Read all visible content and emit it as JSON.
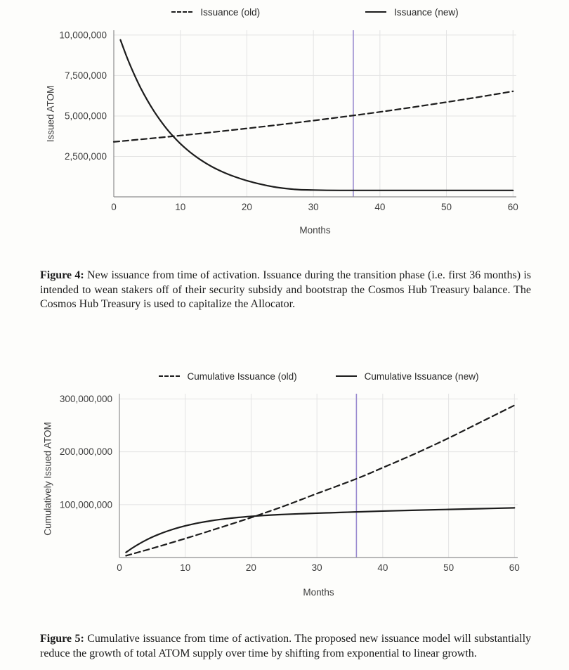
{
  "figure4": {
    "ylabel": "Issued ATOM",
    "xlabel": "Months",
    "caption_label": "Figure 4:",
    "caption_text": "New issuance from time of activation. Issuance during the transition phase (i.e. first 36 months) is intended to wean stakers off of their security subsidy and bootstrap the Cosmos Hub Treasury balance. The Cosmos Hub Treasury is used to capitalize the Allocator."
  },
  "figure5": {
    "ylabel": "Cumulatively Issued ATOM",
    "xlabel": "Months",
    "caption_label": "Figure 5:",
    "caption_text": "Cumulative issuance from time of activation. The proposed new issuance model will substantially reduce the growth of total ATOM supply over time by shifting from exponential to linear growth."
  },
  "chart_data": [
    {
      "type": "line",
      "title": "",
      "xlabel": "Months",
      "ylabel": "Issued ATOM",
      "xlim": [
        0,
        60.5
      ],
      "ylim": [
        0,
        10300000
      ],
      "grid": true,
      "legend_position": "top",
      "xticks": [
        0,
        10,
        20,
        30,
        40,
        50,
        60
      ],
      "yticks": [
        {
          "value": 2500000,
          "label": "2,500,000"
        },
        {
          "value": 5000000,
          "label": "5,000,000"
        },
        {
          "value": 7500000,
          "label": "7,500,000"
        },
        {
          "value": 10000000,
          "label": "10,000,000"
        }
      ],
      "marker_line": {
        "x": 36,
        "color": "#9b8cd0"
      },
      "colors": {
        "grid": "#e3e3e3",
        "spine": "#8f8f8f"
      },
      "series": [
        {
          "name": "Issuance (old)",
          "style": "dashed",
          "color": "#1c1c1c",
          "points": [
            [
              0,
              3400000
            ],
            [
              5,
              3590000
            ],
            [
              10,
              3790000
            ],
            [
              15,
              4005000
            ],
            [
              20,
              4230000
            ],
            [
              25,
              4465000
            ],
            [
              30,
              4715000
            ],
            [
              36,
              5030000
            ],
            [
              40,
              5250000
            ],
            [
              45,
              5545000
            ],
            [
              50,
              5855000
            ],
            [
              55,
              6180000
            ],
            [
              60,
              6525000
            ]
          ]
        },
        {
          "name": "Issuance (new)",
          "style": "solid",
          "color": "#1c1c1c",
          "points": [
            [
              1,
              9700000
            ],
            [
              2,
              8600000
            ],
            [
              3,
              7630000
            ],
            [
              4,
              6760000
            ],
            [
              5,
              6000000
            ],
            [
              6,
              5320000
            ],
            [
              7,
              4720000
            ],
            [
              8,
              4180000
            ],
            [
              9,
              3710000
            ],
            [
              10,
              3290000
            ],
            [
              11,
              2920000
            ],
            [
              12,
              2590000
            ],
            [
              13,
              2300000
            ],
            [
              14,
              2040000
            ],
            [
              15,
              1810000
            ],
            [
              16,
              1610000
            ],
            [
              17,
              1430000
            ],
            [
              18,
              1270000
            ],
            [
              19,
              1130000
            ],
            [
              20,
              1000000
            ],
            [
              21,
              890000
            ],
            [
              22,
              790000
            ],
            [
              23,
              700000
            ],
            [
              24,
              620000
            ],
            [
              25,
              560000
            ],
            [
              26,
              510000
            ],
            [
              27,
              470000
            ],
            [
              28,
              440000
            ],
            [
              30,
              420000
            ],
            [
              32,
              405000
            ],
            [
              34,
              400000
            ],
            [
              36,
              400000
            ],
            [
              40,
              400000
            ],
            [
              45,
              400000
            ],
            [
              50,
              400000
            ],
            [
              55,
              400000
            ],
            [
              60,
              400000
            ]
          ]
        }
      ]
    },
    {
      "type": "line",
      "title": "",
      "xlabel": "Months",
      "ylabel": "Cumulatively Issued ATOM",
      "xlim": [
        0,
        60.5
      ],
      "ylim": [
        0,
        310000000
      ],
      "grid": true,
      "legend_position": "top",
      "xticks": [
        0,
        10,
        20,
        30,
        40,
        50,
        60
      ],
      "yticks": [
        {
          "value": 100000000,
          "label": "100,000,000"
        },
        {
          "value": 200000000,
          "label": "200,000,000"
        },
        {
          "value": 300000000,
          "label": "300,000,000"
        }
      ],
      "marker_line": {
        "x": 36,
        "color": "#9b8cd0"
      },
      "colors": {
        "grid": "#e3e3e3",
        "spine": "#8f8f8f"
      },
      "series": [
        {
          "name": "Cumulative Issuance (old)",
          "style": "dashed",
          "color": "#1c1c1c",
          "points": [
            [
              1,
              3400000
            ],
            [
              5,
              17400000
            ],
            [
              10,
              35900000
            ],
            [
              15,
              55400000
            ],
            [
              20,
              75600000
            ],
            [
              25,
              97300000
            ],
            [
              30,
              121000000
            ],
            [
              36,
              149000000
            ],
            [
              40,
              170000000
            ],
            [
              45,
              197000000
            ],
            [
              50,
              226000000
            ],
            [
              55,
              257000000
            ],
            [
              60,
              288000000
            ]
          ]
        },
        {
          "name": "Cumulative Issuance (new)",
          "style": "solid",
          "color": "#1c1c1c",
          "points": [
            [
              1,
              9700000
            ],
            [
              2,
              18300000
            ],
            [
              3,
              25900000
            ],
            [
              4,
              32700000
            ],
            [
              5,
              38700000
            ],
            [
              6,
              44000000
            ],
            [
              7,
              48700000
            ],
            [
              8,
              52900000
            ],
            [
              9,
              56600000
            ],
            [
              10,
              59900000
            ],
            [
              12,
              65400000
            ],
            [
              14,
              69700000
            ],
            [
              16,
              73100000
            ],
            [
              18,
              75800000
            ],
            [
              20,
              77900000
            ],
            [
              22,
              79600000
            ],
            [
              24,
              81000000
            ],
            [
              26,
              82100000
            ],
            [
              28,
              83000000
            ],
            [
              30,
              83900000
            ],
            [
              32,
              84700000
            ],
            [
              34,
              85500000
            ],
            [
              36,
              86300000
            ],
            [
              40,
              87900000
            ],
            [
              45,
              89500000
            ],
            [
              50,
              91000000
            ],
            [
              55,
              92500000
            ],
            [
              60,
              94000000
            ]
          ]
        }
      ]
    }
  ]
}
